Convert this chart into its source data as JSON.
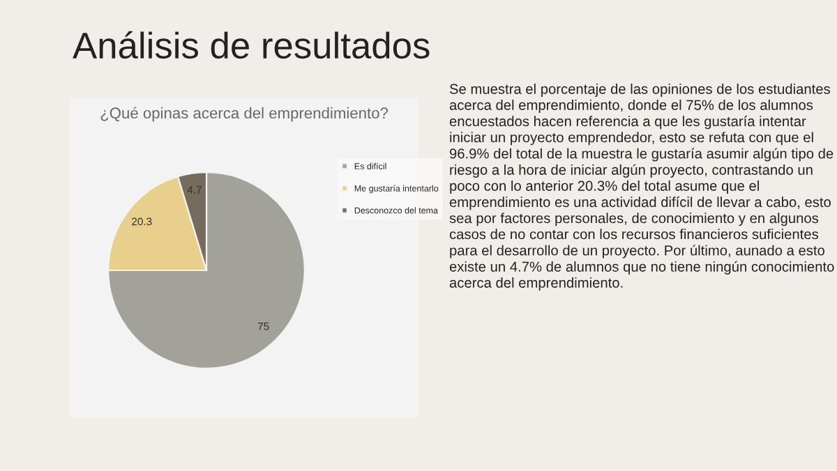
{
  "chart_data": {
    "type": "pie",
    "title": "¿Qué opinas acerca del emprendimiento?",
    "categories": [
      "Es difícil",
      "Me gustaría intentarlo",
      "Desconozco del tema"
    ],
    "values": [
      75,
      20.3,
      4.7
    ],
    "colors": [
      "#a3a29a",
      "#e8d08c",
      "#756c5e"
    ],
    "data_labels": true,
    "legend": "right",
    "annotations": [
      "Análisis de resultados",
      "Se muestra el porcentaje de las opiniones de los estudiantes acerca del emprendimiento, donde el 75% de los alumnos encuestados hacen referencia a que les gustaría intentar iniciar un proyecto emprendedor, esto se refuta con que el 96.9% del total de la muestra le gustaría asumir algún tipo de riesgo a la hora de iniciar algún proyecto, contrastando un poco con lo anterior 20.3% del total asume que el emprendimiento es una actividad difícil de llevar a cabo, esto sea por factores personales, de conocimiento y en algunos casos de no contar con los recursos financieros suficientes para el desarrollo de un proyecto. Por último, aunado a esto existe un 4.7% de alumnos que no tiene ningún conocimiento acerca del emprendimiento."
    ]
  }
}
